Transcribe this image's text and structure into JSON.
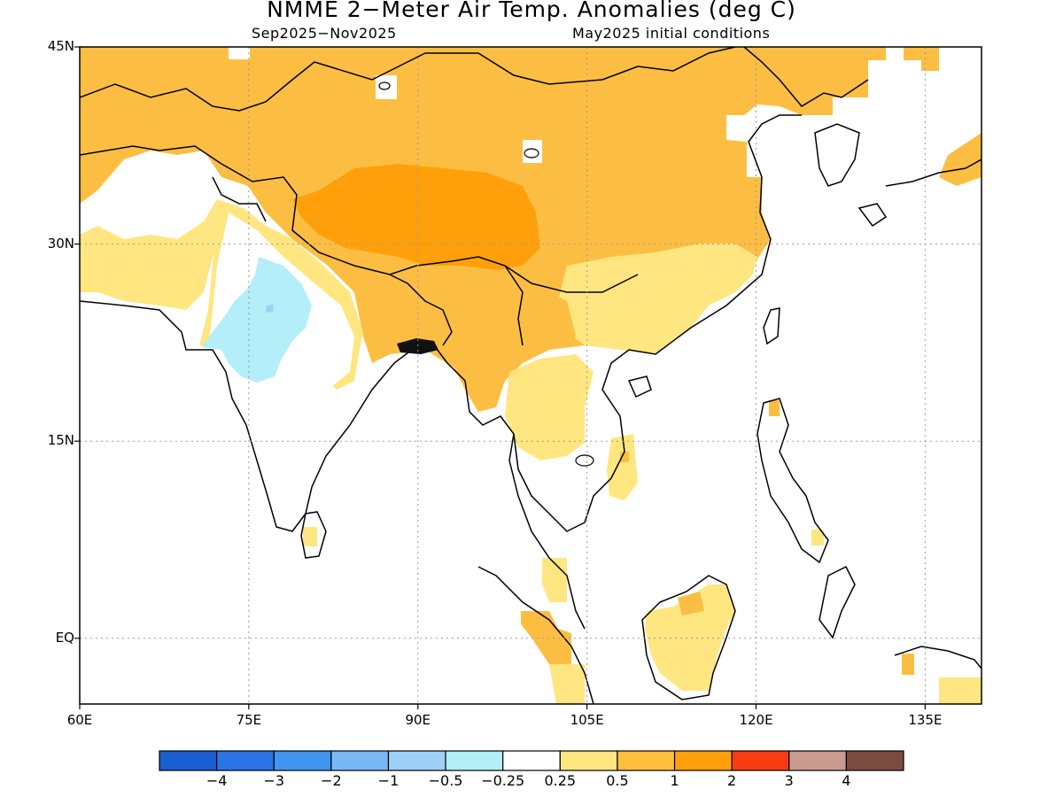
{
  "title": "NMME 2−Meter Air Temp. Anomalies (deg C)",
  "subtitle_left": "Sep2025−Nov2025",
  "subtitle_right": "May2025 initial conditions",
  "lat_ticks": [
    {
      "label": "45N",
      "lat": 45
    },
    {
      "label": "30N",
      "lat": 30
    },
    {
      "label": "15N",
      "lat": 15
    },
    {
      "label": "EQ",
      "lat": 0
    }
  ],
  "lon_ticks": [
    {
      "label": "60E",
      "lon": 60
    },
    {
      "label": "75E",
      "lon": 75
    },
    {
      "label": "90E",
      "lon": 90
    },
    {
      "label": "105E",
      "lon": 105
    },
    {
      "label": "120E",
      "lon": 120
    },
    {
      "label": "135E",
      "lon": 135
    }
  ],
  "lon_range": [
    60,
    140
  ],
  "lat_range": [
    -5,
    45
  ],
  "colorbar": {
    "colors": [
      "#1a5fd1",
      "#2b74e8",
      "#3f95f0",
      "#78b8f5",
      "#9dd1f7",
      "#b4eef9",
      "#ffffff",
      "#ffe680",
      "#ffbf3c",
      "#ffa00a",
      "#fb3b12",
      "#c99c8f",
      "#7a4c40"
    ],
    "labels": [
      "−4",
      "−3",
      "−2",
      "−1",
      "−0.5",
      "−0.25",
      "0.25",
      "0.5",
      "1",
      "2",
      "3",
      "4"
    ]
  },
  "anomaly_colors": {
    "light_orange": "#fcbe42",
    "orange": "#ffa00a",
    "light_yellow": "#ffe680",
    "light_blue": "#b4eef9",
    "blue": "#9dd1f7"
  }
}
